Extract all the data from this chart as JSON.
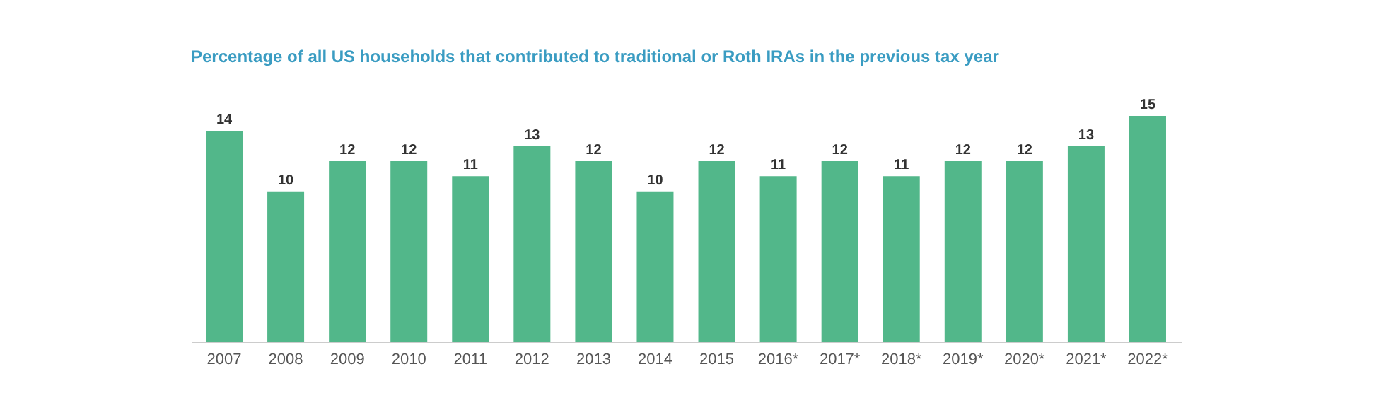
{
  "chart_data": {
    "type": "bar",
    "title": "Percentage of all US households that contributed to traditional or Roth IRAs in the previous tax year",
    "categories": [
      "2007",
      "2008",
      "2009",
      "2010",
      "2011",
      "2012",
      "2013",
      "2014",
      "2015",
      "2016*",
      "2017*",
      "2018*",
      "2019*",
      "2020*",
      "2021*",
      "2022*"
    ],
    "values": [
      14,
      10,
      12,
      12,
      11,
      13,
      12,
      10,
      12,
      11,
      12,
      11,
      12,
      12,
      13,
      15
    ],
    "color": "#52b78a",
    "ylim": [
      0,
      15
    ],
    "data_labels": true,
    "grid": false,
    "tick_labels": "x"
  }
}
